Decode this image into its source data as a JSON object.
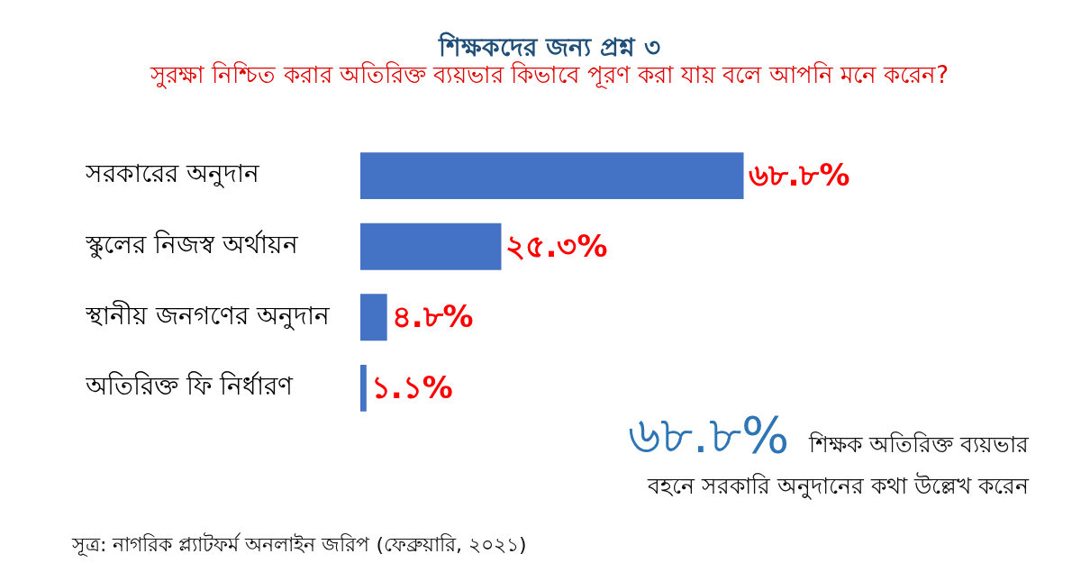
{
  "chart_data": {
    "type": "bar",
    "orientation": "horizontal",
    "title": "শিক্ষকদের জন্য প্রশ্ন ৩",
    "subtitle": "সুরক্ষা নিশ্চিত করার অতিরিক্ত ব্যয়ভার কিভাবে পূরণ করা যায় বলে আপনি মনে করেন?",
    "categories": [
      "সরকারের অনুদান",
      "স্কুলের নিজস্ব অর্থায়ন",
      "স্থানীয় জনগণের অনুদান",
      "অতিরিক্ত ফি নির্ধারণ"
    ],
    "values": [
      68.8,
      25.3,
      4.8,
      1.1
    ],
    "value_labels": [
      "৬৮.৮%",
      "২৫.৩%",
      "৪.৮%",
      "১.১%"
    ],
    "color": "#4472c4",
    "annotations": [
      "৬৮.৮% শিক্ষক অতিরিক্ত ব্যয়ভার বহনে সরকারি অনুদানের কথা উল্লেখ করেন",
      "সূত্র: নাগরিক প্ল্যাটফর্ম অনলাইন জরিপ (ফেব্রুয়ারি, ২০২১)"
    ]
  }
}
